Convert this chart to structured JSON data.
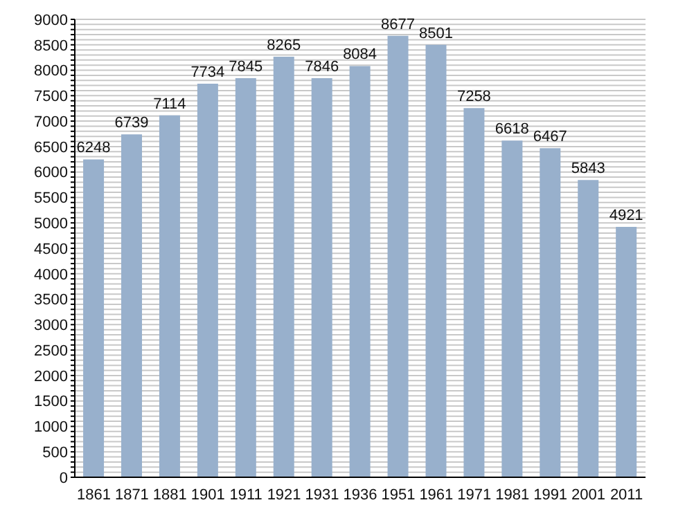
{
  "chart_data": {
    "type": "bar",
    "categories": [
      "1861",
      "1871",
      "1881",
      "1901",
      "1911",
      "1921",
      "1931",
      "1936",
      "1951",
      "1961",
      "1971",
      "1981",
      "1991",
      "2001",
      "2011"
    ],
    "values": [
      6248,
      6739,
      7114,
      7734,
      7845,
      8265,
      7846,
      8084,
      8677,
      8501,
      7258,
      6618,
      6467,
      5843,
      4921
    ],
    "color": "#98b0cc",
    "data_labels": true,
    "grid": "y",
    "ylim": [
      0,
      9000
    ],
    "yticks": [
      0,
      {
        "value": 100,
        "label": null
      },
      {
        "value": 200,
        "label": null
      },
      {
        "value": 300,
        "label": null
      },
      {
        "value": 400,
        "label": null
      },
      500,
      {
        "value": 600,
        "label": null
      },
      {
        "value": 700,
        "label": null
      },
      {
        "value": 800,
        "label": null
      },
      {
        "value": 900,
        "label": null
      },
      1000,
      {
        "value": 1100,
        "label": null
      },
      {
        "value": 1200,
        "label": null
      },
      {
        "value": 1300,
        "label": null
      },
      {
        "value": 1400,
        "label": null
      },
      1500,
      {
        "value": 1600,
        "label": null
      },
      {
        "value": 1700,
        "label": null
      },
      {
        "value": 1800,
        "label": null
      },
      {
        "value": 1900,
        "label": null
      },
      2000,
      {
        "value": 2100,
        "label": null
      },
      {
        "value": 2200,
        "label": null
      },
      {
        "value": 2300,
        "label": null
      },
      {
        "value": 2400,
        "label": null
      },
      2500,
      {
        "value": 2600,
        "label": null
      },
      {
        "value": 2700,
        "label": null
      },
      {
        "value": 2800,
        "label": null
      },
      {
        "value": 2900,
        "label": null
      },
      3000,
      {
        "value": 3100,
        "label": null
      },
      {
        "value": 3200,
        "label": null
      },
      {
        "value": 3300,
        "label": null
      },
      {
        "value": 3400,
        "label": null
      },
      3500,
      {
        "value": 3600,
        "label": null
      },
      {
        "value": 3700,
        "label": null
      },
      {
        "value": 3800,
        "label": null
      },
      {
        "value": 3900,
        "label": null
      },
      4000,
      {
        "value": 4100,
        "label": null
      },
      {
        "value": 4200,
        "label": null
      },
      {
        "value": 4300,
        "label": null
      },
      {
        "value": 4400,
        "label": null
      },
      4500,
      {
        "value": 4600,
        "label": null
      },
      {
        "value": 4700,
        "label": null
      },
      {
        "value": 4800,
        "label": null
      },
      {
        "value": 4900,
        "label": null
      },
      5000,
      {
        "value": 5100,
        "label": null
      },
      {
        "value": 5200,
        "label": null
      },
      {
        "value": 5300,
        "label": null
      },
      {
        "value": 5400,
        "label": null
      },
      5500,
      {
        "value": 5600,
        "label": null
      },
      {
        "value": 5700,
        "label": null
      },
      {
        "value": 5800,
        "label": null
      },
      {
        "value": 5900,
        "label": null
      },
      6000,
      {
        "value": 6100,
        "label": null
      },
      {
        "value": 6200,
        "label": null
      },
      {
        "value": 6300,
        "label": null
      },
      {
        "value": 6400,
        "label": null
      },
      6500,
      {
        "value": 6600,
        "label": null
      },
      {
        "value": 6700,
        "label": null
      },
      {
        "value": 6800,
        "label": null
      },
      {
        "value": 6900,
        "label": null
      },
      7000,
      {
        "value": 7100,
        "label": null
      },
      {
        "value": 7200,
        "label": null
      },
      {
        "value": 7300,
        "label": null
      },
      {
        "value": 7400,
        "label": null
      },
      7500,
      {
        "value": 7600,
        "label": null
      },
      {
        "value": 7700,
        "label": null
      },
      {
        "value": 7800,
        "label": null
      },
      {
        "value": 7900,
        "label": null
      },
      8000,
      {
        "value": 8100,
        "label": null
      },
      {
        "value": 8200,
        "label": null
      },
      {
        "value": 8300,
        "label": null
      },
      {
        "value": 8400,
        "label": null
      },
      8500,
      {
        "value": 8600,
        "label": null
      },
      {
        "value": 8700,
        "label": null
      },
      {
        "value": 8800,
        "label": null
      },
      {
        "value": 8900,
        "label": null
      },
      9000
    ]
  }
}
